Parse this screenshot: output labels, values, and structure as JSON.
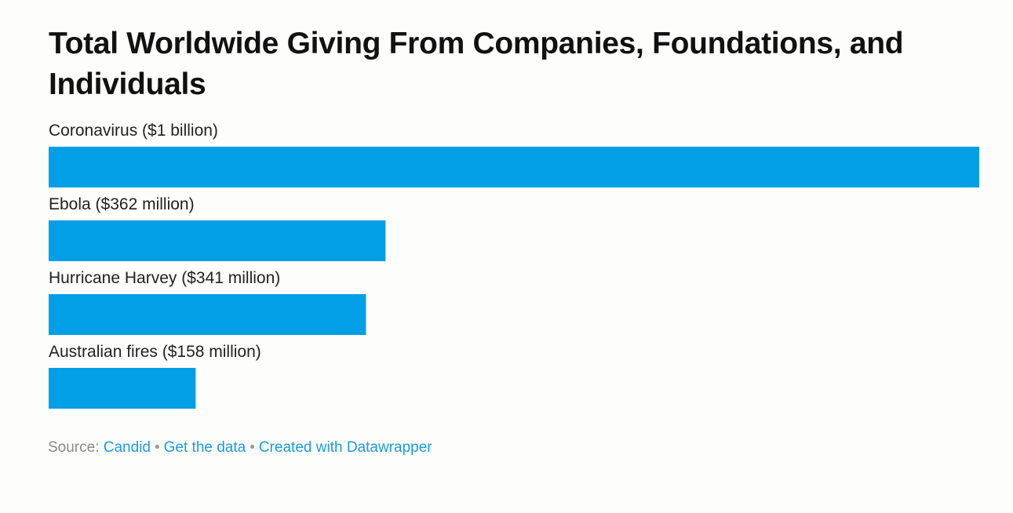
{
  "chart_data": {
    "type": "bar",
    "orientation": "horizontal",
    "title": "Total Worldwide Giving From Companies, Foundations, and Individuals",
    "categories": [
      "Coronavirus",
      "Ebola",
      "Hurricane Harvey",
      "Australian fires"
    ],
    "bar_labels": [
      "Coronavirus ($1 billion)",
      "Ebola ($362 million)",
      "Hurricane Harvey ($341 million)",
      "Australian fires ($158 million)"
    ],
    "values": [
      1000,
      362,
      341,
      158
    ],
    "value_unit": "million USD",
    "xlim": [
      0,
      1000
    ],
    "grid": false,
    "bar_color": "#039fe6"
  },
  "footer": {
    "source_label": "Source:",
    "source_link": "Candid",
    "separator": "•",
    "get_data": "Get the data",
    "credit": "Created with Datawrapper"
  },
  "colors": {
    "background": "#fdfdfb",
    "title": "#111111",
    "label": "#222222",
    "link": "#1a9be0",
    "muted": "#8a8a8a"
  }
}
